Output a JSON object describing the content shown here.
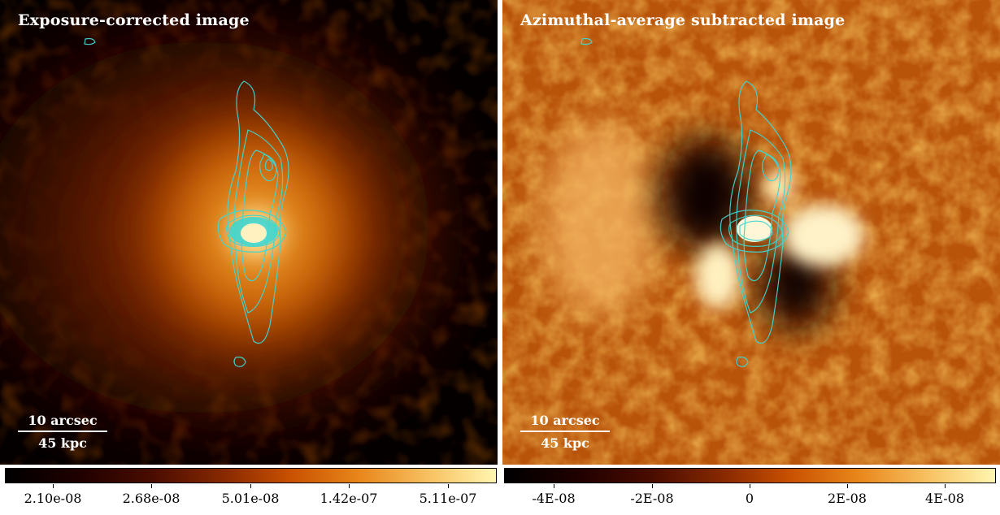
{
  "left_panel": {
    "title": "Exposure-corrected image",
    "scale_top": "10 arcsec",
    "scale_bottom": "45 kpc",
    "colorbar_ticks": [
      "2.10e-08",
      "2.68e-08",
      "5.01e-08",
      "1.42e-07",
      "5.11e-07"
    ]
  },
  "right_panel": {
    "title": "Azimuthal-average subtracted image",
    "scale_top": "10 arcsec",
    "scale_bottom": "45 kpc",
    "colorbar_ticks": [
      "-4E-08",
      "-2E-08",
      "0",
      "2E-08",
      "4E-08"
    ]
  },
  "colors": {
    "contour": "#3fd6d0",
    "colormap_low": "#000000",
    "colormap_mid": "#c85000",
    "colormap_high": "#fff6b0"
  }
}
